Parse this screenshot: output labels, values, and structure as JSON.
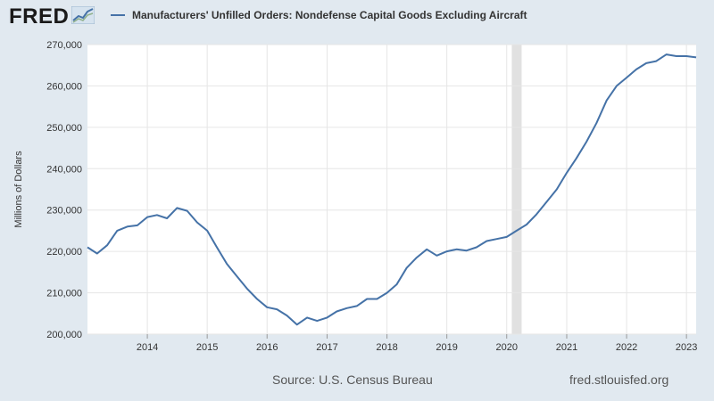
{
  "branding": {
    "logo_text": "FRED",
    "logo_icon": "line-chart-icon",
    "site": "fred.stlouisfed.org"
  },
  "source": "Source: U.S. Census Bureau",
  "colors": {
    "background": "#e1e9f0",
    "plot_bg": "#ffffff",
    "line": "#4572a7",
    "recession": "#e1e1e1",
    "grid": "#e6e6e6"
  },
  "chart_data": {
    "type": "line",
    "title": "Manufacturers' Unfilled Orders: Nondefense Capital Goods Excluding Aircraft",
    "xlabel": "",
    "ylabel": "Millions of Dollars",
    "ylim": [
      200000,
      270000
    ],
    "xlim": [
      "2013-01-01",
      "2023-03-01"
    ],
    "y_ticks": [
      "200,000",
      "210,000",
      "220,000",
      "230,000",
      "240,000",
      "250,000",
      "260,000",
      "270,000"
    ],
    "y_tick_values": [
      200000,
      210000,
      220000,
      230000,
      240000,
      250000,
      260000,
      270000
    ],
    "x_ticks": [
      "2014",
      "2015",
      "2016",
      "2017",
      "2018",
      "2019",
      "2020",
      "2021",
      "2022",
      "2023"
    ],
    "grid": true,
    "legend": "top",
    "recessions": [
      [
        "2020-02-01",
        "2020-04-01"
      ]
    ],
    "series": [
      {
        "name": "Manufacturers' Unfilled Orders: Nondefense Capital Goods Excluding Aircraft",
        "x": [
          "2013-01-01",
          "2013-03-01",
          "2013-05-01",
          "2013-07-01",
          "2013-09-01",
          "2013-11-01",
          "2014-01-01",
          "2014-03-01",
          "2014-05-01",
          "2014-07-01",
          "2014-09-01",
          "2014-11-01",
          "2015-01-01",
          "2015-03-01",
          "2015-05-01",
          "2015-07-01",
          "2015-09-01",
          "2015-11-01",
          "2016-01-01",
          "2016-03-01",
          "2016-05-01",
          "2016-07-01",
          "2016-09-01",
          "2016-11-01",
          "2017-01-01",
          "2017-03-01",
          "2017-05-01",
          "2017-07-01",
          "2017-09-01",
          "2017-11-01",
          "2018-01-01",
          "2018-03-01",
          "2018-05-01",
          "2018-07-01",
          "2018-09-01",
          "2018-11-01",
          "2019-01-01",
          "2019-03-01",
          "2019-05-01",
          "2019-07-01",
          "2019-09-01",
          "2019-11-01",
          "2020-01-01",
          "2020-03-01",
          "2020-05-01",
          "2020-07-01",
          "2020-09-01",
          "2020-11-01",
          "2021-01-01",
          "2021-03-01",
          "2021-05-01",
          "2021-07-01",
          "2021-09-01",
          "2021-11-01",
          "2022-01-01",
          "2022-03-01",
          "2022-05-01",
          "2022-07-01",
          "2022-09-01",
          "2022-11-01",
          "2023-01-01",
          "2023-03-01"
        ],
        "values": [
          221000,
          219500,
          221500,
          225000,
          226000,
          226300,
          228300,
          228800,
          228000,
          230500,
          229800,
          227000,
          225000,
          221000,
          217000,
          214000,
          211000,
          208500,
          206500,
          206000,
          204500,
          202300,
          204000,
          203200,
          204000,
          205500,
          206300,
          206800,
          208500,
          208500,
          210000,
          212000,
          216000,
          218500,
          220500,
          219000,
          220000,
          220500,
          220200,
          221000,
          222500,
          223000,
          223500,
          225000,
          226500,
          229000,
          232000,
          235000,
          239000,
          242500,
          246500,
          251000,
          256500,
          260000,
          262000,
          264000,
          265500,
          266000,
          267600,
          267200,
          267200,
          266900
        ]
      }
    ]
  }
}
